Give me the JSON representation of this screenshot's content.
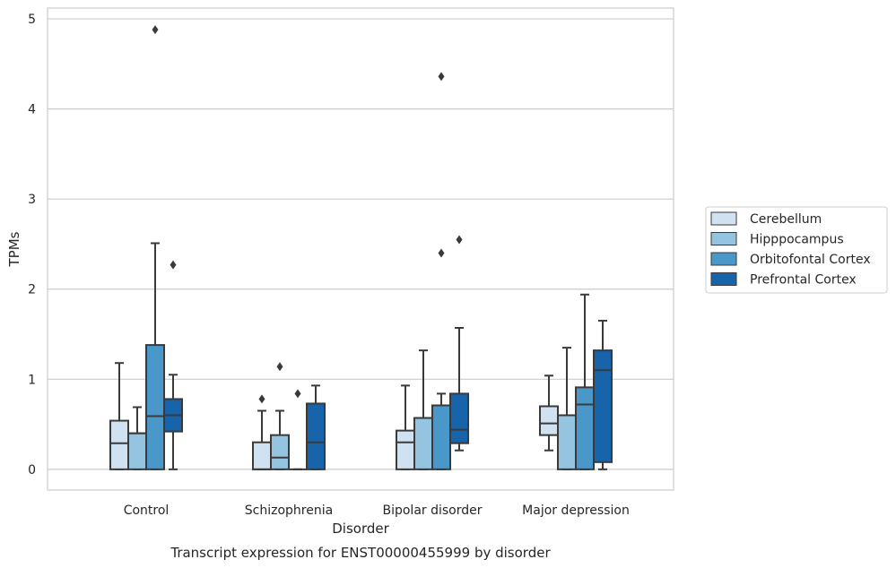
{
  "chart_data": {
    "type": "box",
    "title": "",
    "caption": "Transcript expression for ENST00000455999 by disorder",
    "xlabel": "Disorder",
    "ylabel": "TPMs",
    "ylim": [
      -0.23,
      5.12
    ],
    "yticks": [
      0,
      1,
      2,
      3,
      4,
      5
    ],
    "grid": "horizontal",
    "legend_position": "right",
    "categories": [
      "Control",
      "Schizophrenia",
      "Bipolar disorder",
      "Major depression"
    ],
    "series": [
      {
        "name": "Cerebellum",
        "color": "#d0e1f2",
        "boxes": [
          {
            "category": "Control",
            "whisker_low": 0,
            "q1": 0,
            "median": 0.29,
            "q3": 0.54,
            "whisker_high": 1.18,
            "outliers": []
          },
          {
            "category": "Schizophrenia",
            "whisker_low": 0,
            "q1": 0,
            "median": 0,
            "q3": 0.3,
            "whisker_high": 0.65,
            "outliers": [
              0.78
            ]
          },
          {
            "category": "Bipolar disorder",
            "whisker_low": 0,
            "q1": 0,
            "median": 0.3,
            "q3": 0.43,
            "whisker_high": 0.93,
            "outliers": []
          },
          {
            "category": "Major depression",
            "whisker_low": 0.21,
            "q1": 0.38,
            "median": 0.51,
            "q3": 0.7,
            "whisker_high": 1.04,
            "outliers": []
          }
        ]
      },
      {
        "name": "Hipppocampus",
        "color": "#94c4df",
        "boxes": [
          {
            "category": "Control",
            "whisker_low": 0,
            "q1": 0,
            "median": 0.4,
            "q3": 0.4,
            "whisker_high": 0.69,
            "outliers": []
          },
          {
            "category": "Schizophrenia",
            "whisker_low": 0,
            "q1": 0,
            "median": 0.13,
            "q3": 0.38,
            "whisker_high": 0.65,
            "outliers": [
              1.14
            ]
          },
          {
            "category": "Bipolar disorder",
            "whisker_low": 0,
            "q1": 0,
            "median": 0.57,
            "q3": 0.57,
            "whisker_high": 1.32,
            "outliers": []
          },
          {
            "category": "Major depression",
            "whisker_low": 0,
            "q1": 0,
            "median": 0.6,
            "q3": 0.6,
            "whisker_high": 1.35,
            "outliers": []
          }
        ]
      },
      {
        "name": "Orbitofontal Cortex",
        "color": "#4a98c9",
        "boxes": [
          {
            "category": "Control",
            "whisker_low": 0,
            "q1": 0,
            "median": 0.59,
            "q3": 1.38,
            "whisker_high": 2.51,
            "outliers": [
              4.88
            ]
          },
          {
            "category": "Schizophrenia",
            "whisker_low": 0,
            "q1": 0,
            "median": 0,
            "q3": 0,
            "whisker_high": 0,
            "outliers": [
              0.84
            ]
          },
          {
            "category": "Bipolar disorder",
            "whisker_low": 0,
            "q1": 0,
            "median": 0.71,
            "q3": 0.71,
            "whisker_high": 0.84,
            "outliers": [
              2.4,
              4.36
            ]
          },
          {
            "category": "Major depression",
            "whisker_low": 0,
            "q1": 0,
            "median": 0.72,
            "q3": 0.91,
            "whisker_high": 1.94,
            "outliers": []
          }
        ]
      },
      {
        "name": "Prefrontal Cortex",
        "color": "#1764ab",
        "boxes": [
          {
            "category": "Control",
            "whisker_low": 0,
            "q1": 0.42,
            "median": 0.6,
            "q3": 0.78,
            "whisker_high": 1.05,
            "outliers": [
              2.27
            ]
          },
          {
            "category": "Schizophrenia",
            "whisker_low": 0,
            "q1": 0,
            "median": 0.3,
            "q3": 0.73,
            "whisker_high": 0.93,
            "outliers": []
          },
          {
            "category": "Bipolar disorder",
            "whisker_low": 0.21,
            "q1": 0.29,
            "median": 0.44,
            "q3": 0.84,
            "whisker_high": 1.57,
            "outliers": [
              2.55
            ]
          },
          {
            "category": "Major depression",
            "whisker_low": 0,
            "q1": 0.08,
            "median": 1.1,
            "q3": 1.32,
            "whisker_high": 1.65,
            "outliers": []
          }
        ]
      }
    ]
  }
}
